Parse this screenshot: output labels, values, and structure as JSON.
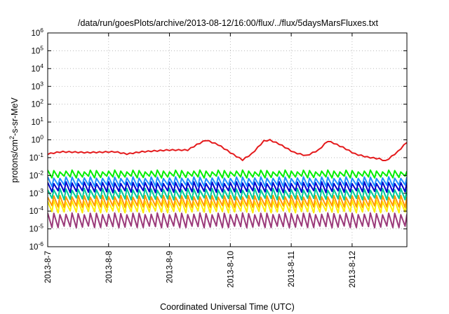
{
  "chart_data": {
    "type": "line",
    "title": "/data/run/goesPlots/archive/2013-08-12/16:00/flux/../flux/5daysMarsFluxes.txt",
    "xlabel": "Coordinated Universal Time (UTC)",
    "ylabel_parts": [
      "protons/cm",
      "2",
      "-s-sr-MeV"
    ],
    "ylog": true,
    "ylim": [
      1e-06,
      1000000.0
    ],
    "xlim_days": [
      0,
      5.9
    ],
    "x_tick_labels": [
      "2013-8-7",
      "2013-8-8",
      "2013-8-9",
      "2013-8-10",
      "2013-8-11",
      "2013-8-12"
    ],
    "y_tick_labels": [
      {
        "base": "10",
        "exp": "6"
      },
      {
        "base": "10",
        "exp": "5"
      },
      {
        "base": "10",
        "exp": "4"
      },
      {
        "base": "10",
        "exp": "3"
      },
      {
        "base": "10",
        "exp": "2"
      },
      {
        "base": "10",
        "exp": "1"
      },
      {
        "base": "10",
        "exp": "0"
      },
      {
        "base": "10",
        "exp": "-1"
      },
      {
        "base": "10",
        "exp": "-2"
      },
      {
        "base": "10",
        "exp": "-3"
      },
      {
        "base": "10",
        "exp": "-4"
      },
      {
        "base": "10",
        "exp": "-5"
      },
      {
        "base": "10",
        "exp": "-6"
      }
    ],
    "grid": true,
    "series": [
      {
        "color": "#e41a1c",
        "points": [
          [
            0,
            0.15
          ],
          [
            0.22,
            0.2
          ],
          [
            0.66,
            0.18
          ],
          [
            1.1,
            0.2
          ],
          [
            1.3,
            0.15
          ],
          [
            1.55,
            0.2
          ],
          [
            2.0,
            0.25
          ],
          [
            2.3,
            0.25
          ],
          [
            2.45,
            0.5
          ],
          [
            2.6,
            0.9
          ],
          [
            2.8,
            0.5
          ],
          [
            3.05,
            0.14
          ],
          [
            3.2,
            0.07
          ],
          [
            3.35,
            0.15
          ],
          [
            3.55,
            0.8
          ],
          [
            3.65,
            0.9
          ],
          [
            3.8,
            0.55
          ],
          [
            4.05,
            0.18
          ],
          [
            4.25,
            0.12
          ],
          [
            4.45,
            0.25
          ],
          [
            4.6,
            0.8
          ],
          [
            4.7,
            0.6
          ],
          [
            4.85,
            0.35
          ],
          [
            5.05,
            0.15
          ],
          [
            5.25,
            0.1
          ],
          [
            5.45,
            0.08
          ],
          [
            5.55,
            0.06
          ],
          [
            5.75,
            0.2
          ],
          [
            5.9,
            0.7
          ]
        ],
        "teeth": 0.15,
        "period": 0.1
      },
      {
        "color": "#00ee00",
        "center": 0.012,
        "ratio": 2.2,
        "period": 0.1
      },
      {
        "color": "#1e90ff",
        "center": 0.0045,
        "ratio": 2.8,
        "period": 0.1
      },
      {
        "color": "#0000cd",
        "center": 0.0022,
        "ratio": 3.2,
        "period": 0.1
      },
      {
        "color": "#00cc99",
        "center": 0.0009,
        "ratio": 3.5,
        "period": 0.1
      },
      {
        "color": "#ff9900",
        "center": 0.00035,
        "ratio": 3.8,
        "period": 0.1
      },
      {
        "color": "#ffee00",
        "center": 0.00018,
        "ratio": 4.0,
        "period": 0.1
      },
      {
        "color": "#9b3a7a",
        "center": 3e-05,
        "ratio": 5.5,
        "period": 0.1
      }
    ]
  }
}
